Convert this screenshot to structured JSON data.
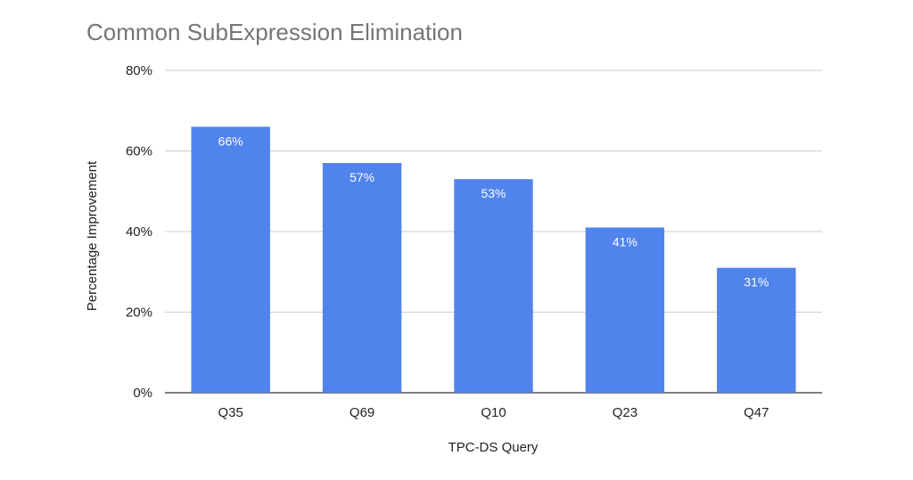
{
  "chart_data": {
    "type": "bar",
    "title": "Common SubExpression Elimination",
    "xlabel": "TPC-DS Query",
    "ylabel": "Percentage Improvement",
    "categories": [
      "Q35",
      "Q69",
      "Q10",
      "Q23",
      "Q47"
    ],
    "values": [
      66,
      57,
      53,
      41,
      31
    ],
    "data_labels": [
      "66%",
      "57%",
      "53%",
      "41%",
      "31%"
    ],
    "ylim": [
      0,
      80
    ],
    "yticks": [
      0,
      20,
      40,
      60,
      80
    ],
    "ytick_labels": [
      "0%",
      "20%",
      "40%",
      "60%",
      "80%"
    ],
    "grid": true,
    "legend": "none",
    "bar_color": "#5183ec"
  }
}
